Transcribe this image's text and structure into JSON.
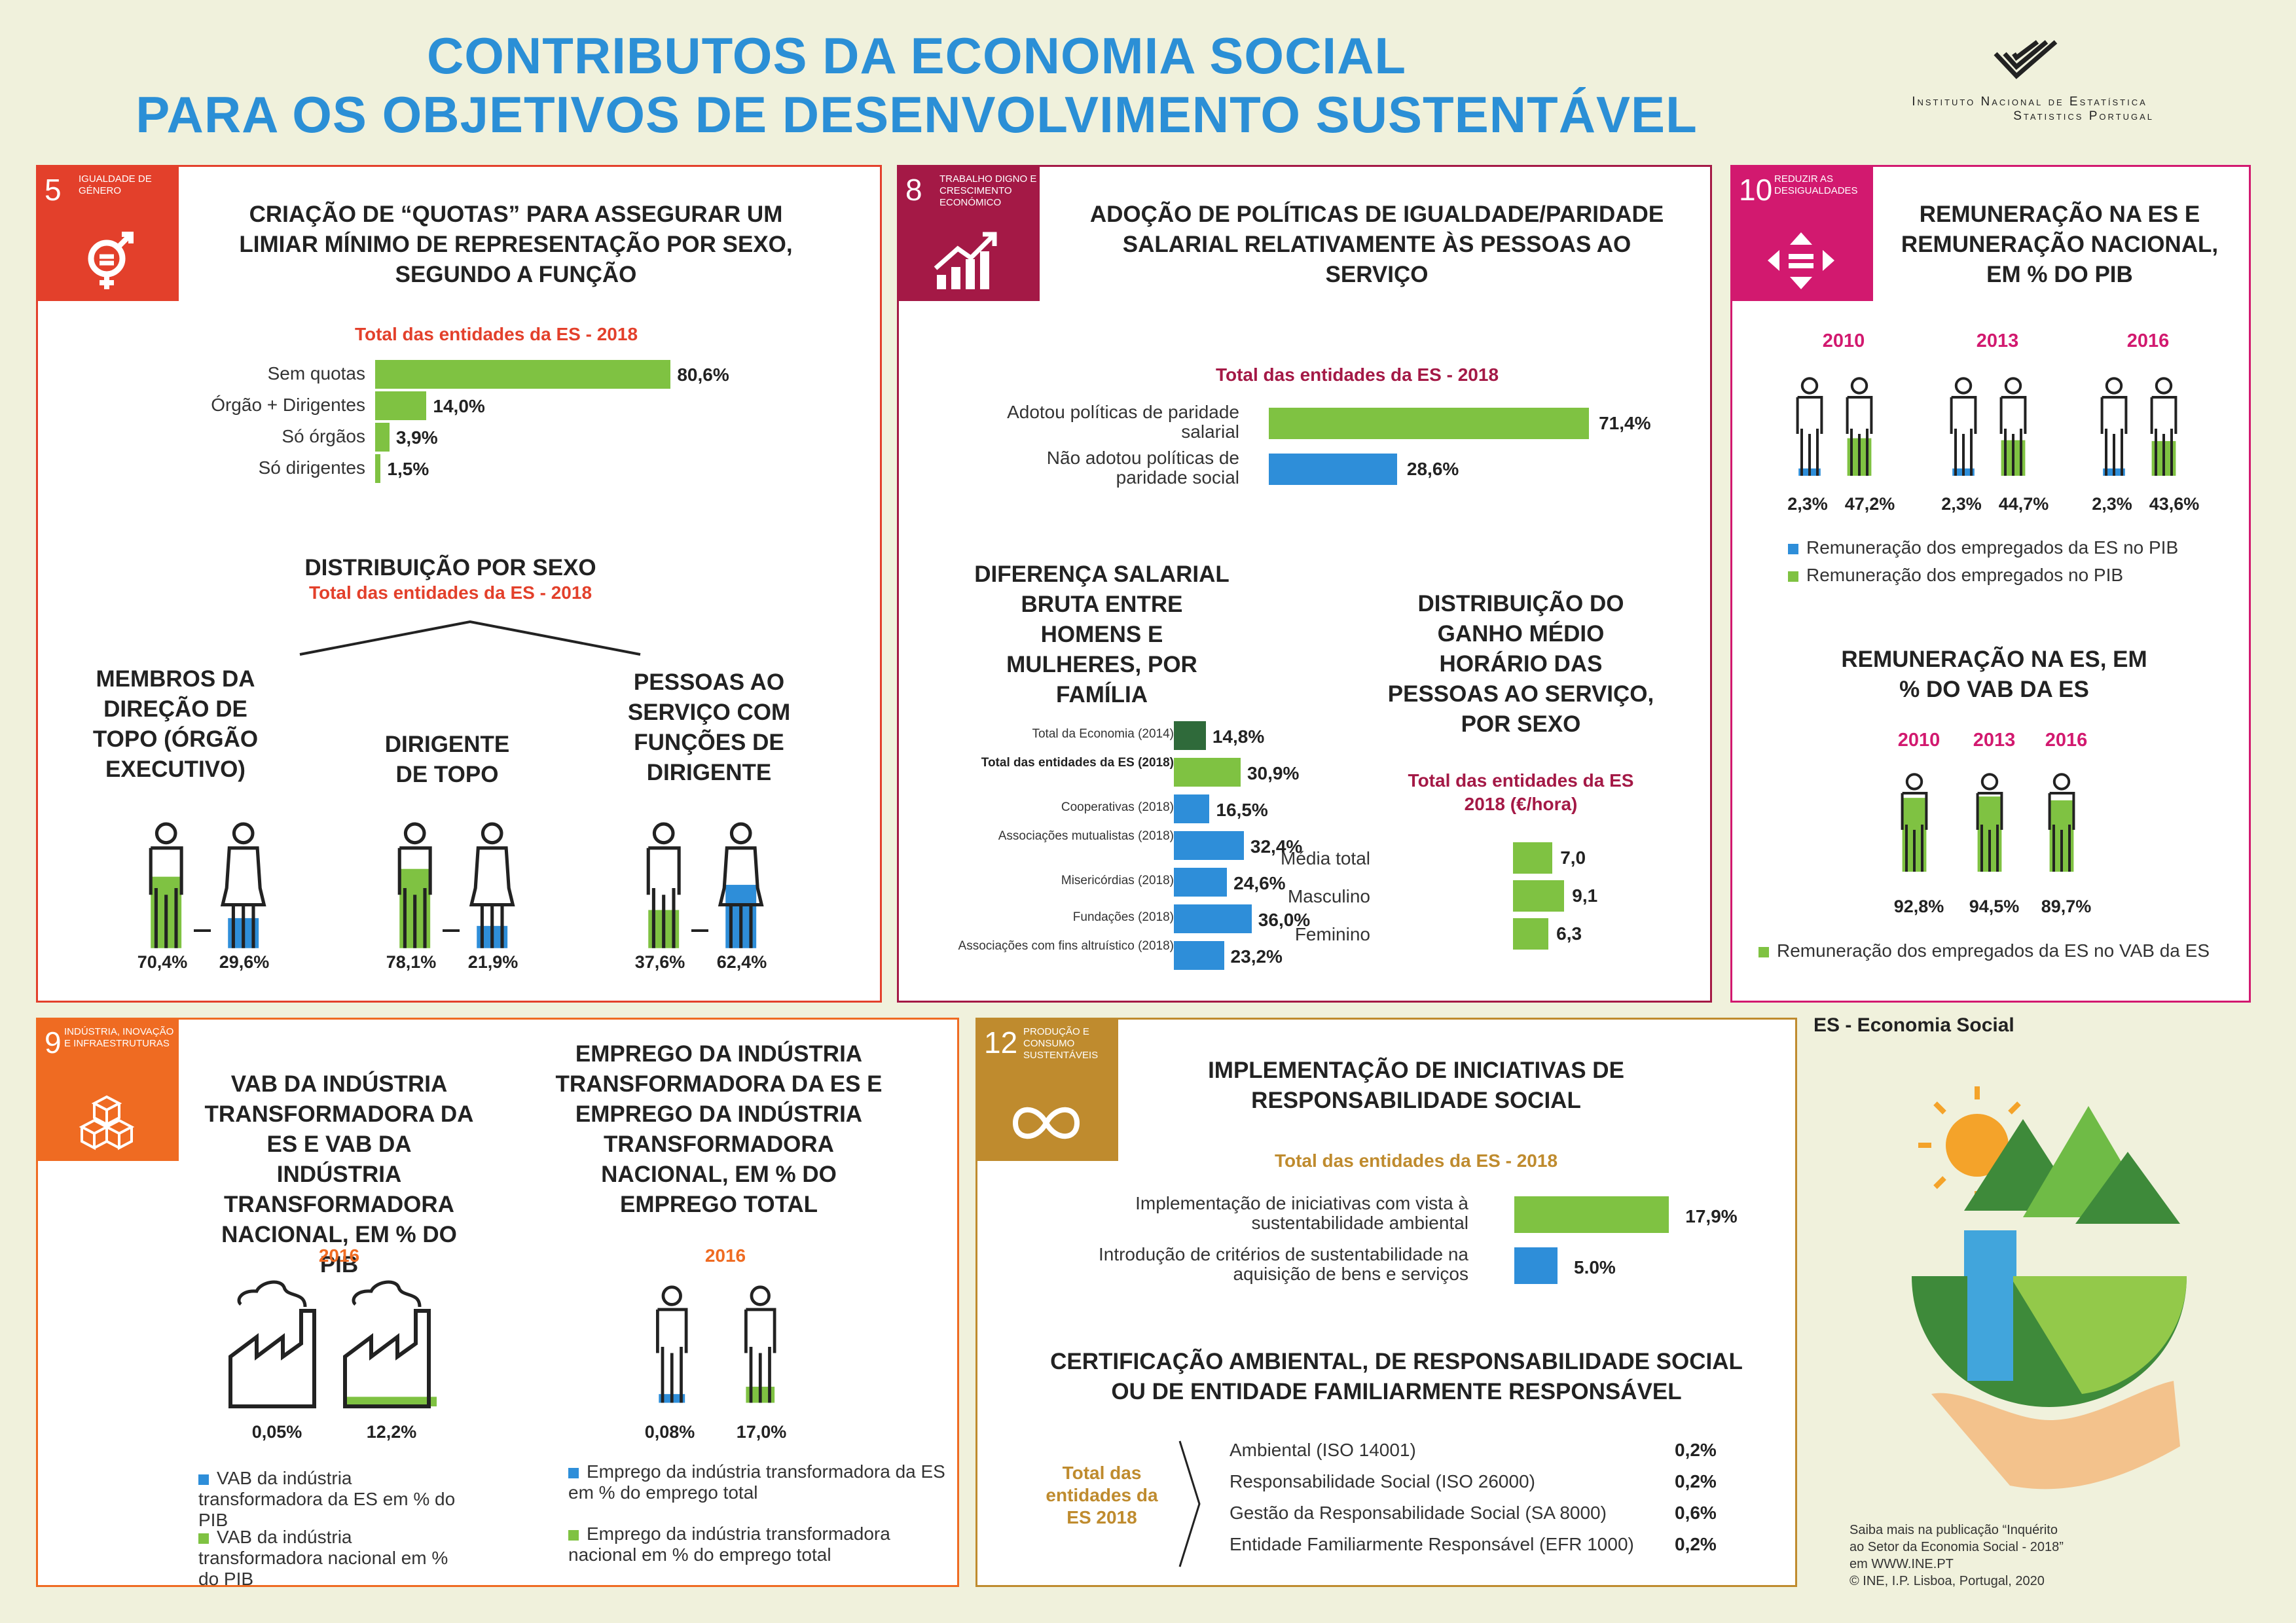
{
  "header": {
    "title_line1": "CONTRIBUTOS DA ECONOMIA SOCIAL",
    "title_line2": "PARA OS OBJETIVOS DE DESENVOLVIMENTO SUSTENTÁVEL",
    "ine_line1": "Instituto Nacional de Estatística",
    "ine_line2": "Statistics Portugal"
  },
  "colors": {
    "green": "#7fc242",
    "blue": "#2e8ed9",
    "dark_green": "#2f6a3a",
    "sdg5": "#e3402b",
    "sdg8": "#a41946",
    "sdg10": "#d2196f",
    "sdg9": "#ef6b22",
    "sdg12": "#bf8b2e",
    "title": "#2b8fd6"
  },
  "sdg5": {
    "num": "5",
    "label": "Igualdade de género",
    "title": "CRIAÇÃO DE “QUOTAS” PARA ASSEGURAR UM LIMIAR MÍNIMO DE REPRESENTAÇÃO POR SEXO, SEGUNDO A FUNÇÃO",
    "subtitle": "Total das entidades da ES - 2018",
    "bars": [
      {
        "label": "Sem quotas",
        "value": 80.6,
        "text": "80,6%"
      },
      {
        "label": "Órgão + Dirigentes",
        "value": 14.0,
        "text": "14,0%"
      },
      {
        "label": "Só órgãos",
        "value": 3.9,
        "text": "3,9%"
      },
      {
        "label": "Só dirigentes",
        "value": 1.5,
        "text": "1,5%"
      }
    ],
    "dist_title": "DISTRIBUIÇÃO POR SEXO",
    "dist_sub": "Total das entidades da ES - 2018",
    "groups": [
      {
        "title": "MEMBROS DA DIREÇÃO DE TOPO (ÓRGÃO EXECUTIVO)",
        "m": "70,4%",
        "f": "29,6%",
        "mv": 70.4,
        "fv": 29.6
      },
      {
        "title": "DIRIGENTE DE TOPO",
        "m": "78,1%",
        "f": "21,9%",
        "mv": 78.1,
        "fv": 21.9
      },
      {
        "title": "PESSOAS AO SERVIÇO COM FUNÇÕES DE DIRIGENTE",
        "m": "37,6%",
        "f": "62,4%",
        "mv": 37.6,
        "fv": 62.4
      }
    ]
  },
  "sdg8": {
    "num": "8",
    "label": "Trabalho digno e crescimento económico",
    "title": "ADOÇÃO DE POLÍTICAS DE IGUALDADE/PARIDADE SALARIAL RELATIVAMENTE ÀS PESSOAS AO SERVIÇO",
    "subtitle": "Total das entidades da ES - 2018",
    "bars": [
      {
        "label": "Adotou políticas de paridade salarial",
        "value": 71.4,
        "text": "71,4%"
      },
      {
        "label": "Não adotou políticas de paridade social",
        "value": 28.6,
        "text": "28,6%"
      }
    ],
    "gap_title": "DIFERENÇA SALARIAL BRUTA ENTRE HOMENS E MULHERES, POR FAMÍLIA",
    "gap": [
      {
        "label": "Total da Economia (2014)",
        "value": 14.8,
        "text": "14,8%",
        "c": "dg"
      },
      {
        "label": "Total das entidades da ES (2018)",
        "value": 30.9,
        "text": "30,9%",
        "c": "g"
      },
      {
        "label": "Cooperativas (2018)",
        "value": 16.5,
        "text": "16,5%",
        "c": "b"
      },
      {
        "label": "Associações mutualistas (2018)",
        "value": 32.4,
        "text": "32,4%",
        "c": "b"
      },
      {
        "label": "Misericórdias (2018)",
        "value": 24.6,
        "text": "24,6%",
        "c": "b"
      },
      {
        "label": "Fundações (2018)",
        "value": 36.0,
        "text": "36,0%",
        "c": "b"
      },
      {
        "label": "Associações com fins altruístico (2018)",
        "value": 23.2,
        "text": "23,2%",
        "c": "b"
      }
    ],
    "wage_title": "DISTRIBUIÇÃO DO GANHO MÉDIO HORÁRIO DAS PESSOAS AO SERVIÇO, POR SEXO",
    "wage_sub": "Total das entidades da ES 2018 (€/hora)",
    "wage": [
      {
        "label": "Média total",
        "value": 7.0,
        "text": "7,0"
      },
      {
        "label": "Masculino",
        "value": 9.1,
        "text": "9,1"
      },
      {
        "label": "Feminino",
        "value": 6.3,
        "text": "6,3"
      }
    ]
  },
  "sdg10": {
    "num": "10",
    "label": "Reduzir as desigualdades",
    "title": "REMUNERAÇÃO NA ES E REMUNERAÇÃO NACIONAL, EM % DO PIB",
    "years": [
      {
        "y": "2010",
        "a": "2,3%",
        "b": "47,2%",
        "bv": 47.2
      },
      {
        "y": "2013",
        "a": "2,3%",
        "b": "44,7%",
        "bv": 44.7
      },
      {
        "y": "2016",
        "a": "2,3%",
        "b": "43,6%",
        "bv": 43.6
      }
    ],
    "leg1": "Remuneração dos empregados da ES no PIB",
    "leg2": "Remuneração dos empregados no PIB",
    "title2": "REMUNERAÇÃO NA ES, EM % DO VAB DA ES",
    "years2": [
      {
        "y": "2010",
        "v": "92,8%",
        "vv": 92.8
      },
      {
        "y": "2013",
        "v": "94,5%",
        "vv": 94.5
      },
      {
        "y": "2016",
        "v": "89,7%",
        "vv": 89.7
      }
    ],
    "leg3": "Remuneração dos empregados da ES no VAB da ES"
  },
  "sdg9": {
    "num": "9",
    "label": "Indústria, inovação e infraestruturas",
    "title1": "VAB DA INDÚSTRIA TRANSFORMADORA DA ES E VAB DA INDÚSTRIA TRANSFORMADORA NACIONAL, EM % DO PIB",
    "year1": "2016",
    "v1a": "0,05%",
    "v1b": "12,2%",
    "v1bv": 12.2,
    "leg1a": "VAB da indústria transformadora da ES em % do PIB",
    "leg1b": "VAB da indústria transformadora nacional em % do PIB",
    "title2": "EMPREGO DA INDÚSTRIA TRANSFORMADORA DA ES E EMPREGO DA INDÚSTRIA TRANSFORMADORA NACIONAL, EM % DO EMPREGO TOTAL",
    "year2": "2016",
    "v2a": "0,08%",
    "v2b": "17,0%",
    "v2bv": 17.0,
    "leg2a": "Emprego da indústria transformadora da ES em % do emprego total",
    "leg2b": "Emprego da indústria transformadora nacional em % do emprego total"
  },
  "sdg12": {
    "num": "12",
    "label": "Produção e consumo sustentáveis",
    "title": "IMPLEMENTAÇÃO DE INICIATIVAS DE RESPONSABILIDADE SOCIAL",
    "subtitle": "Total das entidades da ES - 2018",
    "bars": [
      {
        "label": "Implementação de iniciativas com vista à sustentabilidade ambiental",
        "value": 17.9,
        "text": "17,9%"
      },
      {
        "label": "Introdução de critérios de sustentabilidade na aquisição de bens e serviços",
        "value": 5.0,
        "text": "5.0%"
      }
    ],
    "cert_title": "CERTIFICAÇÃO AMBIENTAL, DE RESPONSABILIDADE SOCIAL OU DE ENTIDADE FAMILIARMENTE RESPONSÁVEL",
    "cert_side": "Total das entidades da ES 2018",
    "cert": [
      {
        "label": "Ambiental (ISO 14001)",
        "v": "0,2%"
      },
      {
        "label": "Responsabilidade Social (ISO 26000)",
        "v": "0,2%"
      },
      {
        "label": "Gestão da Responsabilidade Social (SA 8000)",
        "v": "0,6%"
      },
      {
        "label": "Entidade Familiarmente Responsável (EFR 1000)",
        "v": "0,2%"
      }
    ]
  },
  "footer": {
    "es_note": "ES - Economia Social",
    "more1": "Saiba mais na publicação “Inquérito",
    "more2": "ao Setor da Economia Social - 2018”",
    "more3": "em WWW.INE.PT",
    "copy": "©  INE, I.P. Lisboa, Portugal, 2020"
  }
}
